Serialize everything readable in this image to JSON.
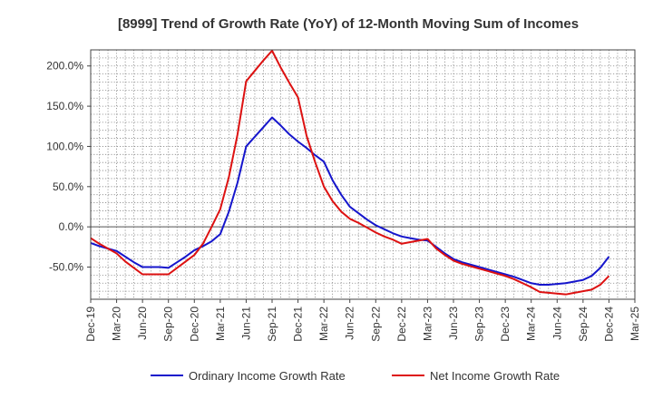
{
  "chart_data": {
    "type": "line",
    "title": "[8999]  Trend of Growth Rate (YoY) of 12-Month Moving Sum of Incomes",
    "xlabel": "",
    "ylabel": "",
    "x_tick_labels": [
      "Dec-19",
      "Mar-20",
      "Jun-20",
      "Sep-20",
      "Dec-20",
      "Mar-21",
      "Jun-21",
      "Sep-21",
      "Dec-21",
      "Mar-22",
      "Jun-22",
      "Sep-22",
      "Dec-22",
      "Mar-23",
      "Jun-23",
      "Sep-23",
      "Dec-23",
      "Mar-24",
      "Jun-24",
      "Sep-24",
      "Dec-24",
      "Mar-25"
    ],
    "y_ticks": [
      200,
      150,
      100,
      50,
      0,
      -50
    ],
    "y_tick_labels": [
      "200.0%",
      "150.0%",
      "100.0%",
      "50.0%",
      "0.0%",
      "-50.0%"
    ],
    "ylim": [
      -90,
      220
    ],
    "y_unit": "%",
    "grid": true,
    "legend_position": "bottom",
    "x_dates": [
      "2019-12",
      "2020-01",
      "2020-02",
      "2020-03",
      "2020-04",
      "2020-05",
      "2020-06",
      "2020-07",
      "2020-08",
      "2020-09",
      "2020-10",
      "2020-11",
      "2020-12",
      "2021-01",
      "2021-02",
      "2021-03",
      "2021-04",
      "2021-05",
      "2021-06",
      "2021-07",
      "2021-08",
      "2021-09",
      "2021-10",
      "2021-11",
      "2021-12",
      "2022-01",
      "2022-02",
      "2022-03",
      "2022-04",
      "2022-05",
      "2022-06",
      "2022-07",
      "2022-08",
      "2022-09",
      "2022-10",
      "2022-11",
      "2022-12",
      "2023-01",
      "2023-02",
      "2023-03",
      "2023-04",
      "2023-05",
      "2023-06",
      "2023-07",
      "2023-08",
      "2023-09",
      "2023-10",
      "2023-11",
      "2023-12",
      "2024-01",
      "2024-02",
      "2024-03",
      "2024-04",
      "2024-05",
      "2024-06",
      "2024-07",
      "2024-08",
      "2024-09",
      "2024-10",
      "2024-11",
      "2024-12"
    ],
    "series": [
      {
        "name": "Ordinary Income Growth Rate",
        "color": "#1515cc",
        "values": [
          -20,
          -24,
          -27,
          -30,
          -37,
          -44,
          -50,
          -50,
          -50,
          -51,
          -44,
          -37,
          -29,
          -24,
          -18,
          -9,
          19,
          55,
          100,
          112,
          124,
          136,
          126,
          115,
          106,
          98,
          89,
          81,
          58,
          40,
          25,
          17,
          9,
          2,
          -3,
          -8,
          -12,
          -14,
          -16,
          -17,
          -25,
          -33,
          -40,
          -44,
          -47,
          -50,
          -53,
          -56,
          -59,
          -62,
          -66,
          -70,
          -72,
          -72,
          -71,
          -70,
          -68,
          -66,
          -61,
          -51,
          -37
        ]
      },
      {
        "name": "Net Income Growth Rate",
        "color": "#dd1111",
        "values": [
          -14,
          -21,
          -27,
          -33,
          -43,
          -51,
          -59,
          -59,
          -59,
          -59,
          -51,
          -43,
          -35,
          -21,
          0,
          22,
          62,
          115,
          181,
          194,
          207,
          219,
          198,
          179,
          161,
          113,
          80,
          50,
          32,
          19,
          10,
          5,
          -1,
          -7,
          -12,
          -16,
          -21,
          -19,
          -17,
          -15,
          -27,
          -35,
          -42,
          -46,
          -49,
          -52,
          -55,
          -58,
          -61,
          -65,
          -70,
          -75,
          -81,
          -82,
          -83,
          -84,
          -82,
          -80,
          -78,
          -72,
          -61
        ]
      }
    ]
  }
}
